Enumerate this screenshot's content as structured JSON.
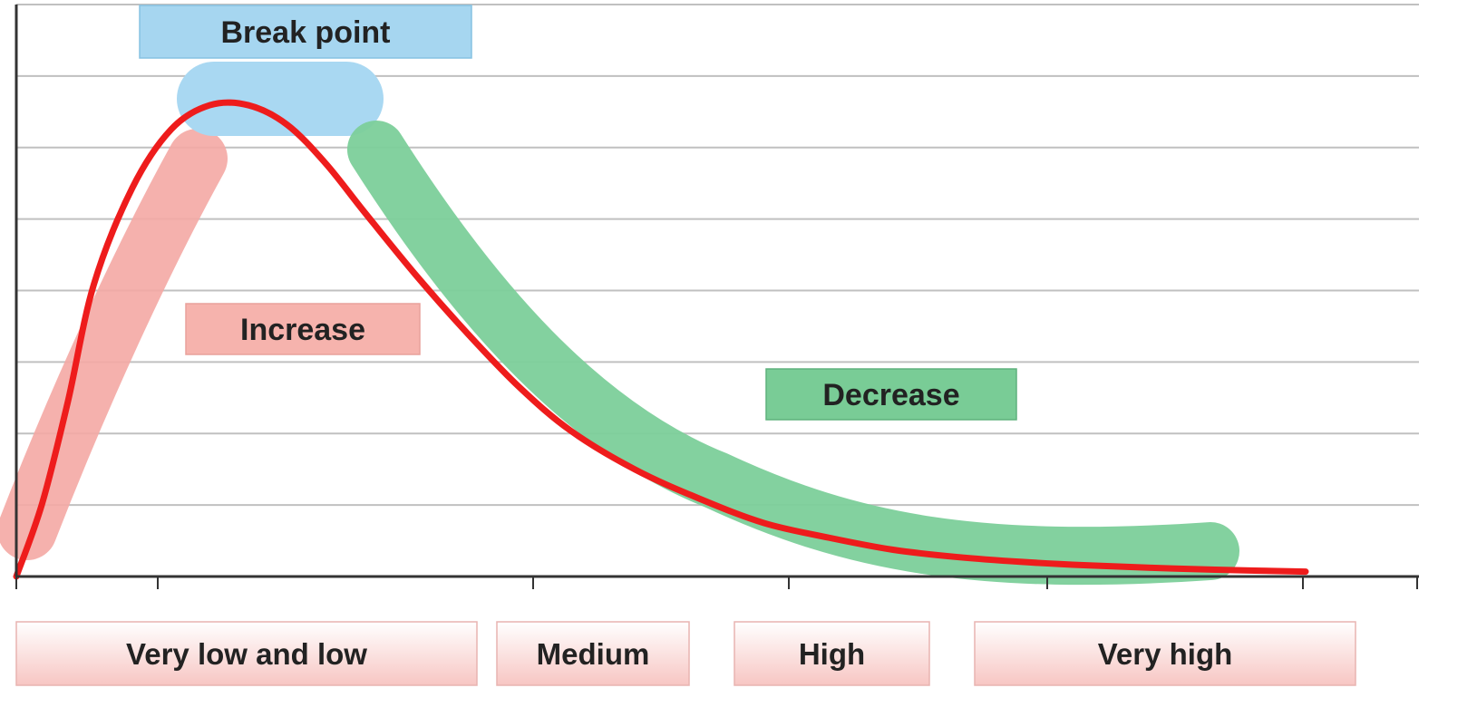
{
  "chart_data": {
    "type": "line",
    "title": "",
    "xlabel": "",
    "ylabel": "",
    "grid": true,
    "y_gridlines": 8,
    "x": [
      0,
      0.02,
      0.04,
      0.06,
      0.09,
      0.12,
      0.15,
      0.18,
      0.21,
      0.24,
      0.27,
      0.31,
      0.35,
      0.39,
      0.43,
      0.48,
      0.53,
      0.58,
      0.63,
      0.68,
      0.73,
      0.78,
      0.83,
      0.88,
      0.93,
      1.0
    ],
    "series": [
      {
        "name": "",
        "color": "#ee1c1c",
        "values": [
          0,
          15,
          36,
          60,
          80,
          92,
          97,
          97,
          93,
          85,
          75,
          62,
          50,
          39,
          30,
          22,
          16,
          11,
          8,
          5.5,
          4,
          3,
          2.3,
          1.8,
          1.4,
          1
        ]
      }
    ],
    "phases": [
      {
        "label": "Increase",
        "color": "#f4a9a4"
      },
      {
        "label": "Break point",
        "color": "#a9d8f2"
      },
      {
        "label": "Decrease",
        "color": "#7ccf9a"
      }
    ],
    "categories": [
      "Very low and low",
      "Medium",
      "High",
      "Very high"
    ],
    "colors": {
      "category_box": "#f9d2d0",
      "category_border": "#e8b4b1",
      "grid": "#c0c0c0",
      "axis": "#333333"
    }
  }
}
